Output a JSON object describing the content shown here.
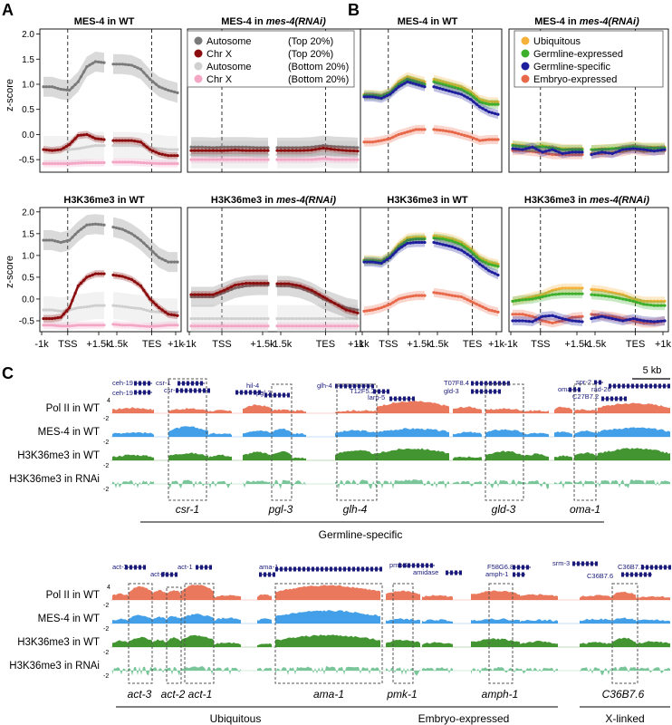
{
  "panels": {
    "A": "A",
    "B": "B",
    "C": "C"
  },
  "ylabel": "z-score",
  "yticks": [
    "-0.5",
    "0.0",
    "0.5",
    "1.0",
    "1.5",
    "2.0"
  ],
  "xticks": [
    "-1k",
    "TSS",
    "+1.5k",
    "-1.5k",
    "TES",
    "+1k"
  ],
  "legend_A": [
    {
      "label": "Autosome",
      "note": "(Top 20%)",
      "color": "#7a7a7a"
    },
    {
      "label": "Chr X",
      "note": "(Top 20%)",
      "color": "#8b0d0d"
    },
    {
      "label": "Autosome",
      "note": "(Bottom 20%)",
      "color": "#d0d0d0"
    },
    {
      "label": "Chr X",
      "note": "(Bottom 20%)",
      "color": "#f3a7c4"
    }
  ],
  "legend_B": [
    {
      "label": "Ubiquitous",
      "color": "#f6b13a"
    },
    {
      "label": "Germline-expressed",
      "color": "#3daf2c"
    },
    {
      "label": "Germline-specific",
      "color": "#1f1f9e"
    },
    {
      "label": "Embryo-expressed",
      "color": "#e8694a"
    }
  ],
  "titles": {
    "A_top_left": "MES-4 in WT",
    "A_top_right_pre": "MES-4 in ",
    "A_top_right_em": "mes-4(RNAi)",
    "A_bot_left": "H3K36me3 in WT",
    "A_bot_right_pre": "H3K36me3 in ",
    "A_bot_right_em": "mes-4(RNAi)",
    "B_top_left": "MES-4 in WT",
    "B_top_right_pre": "MES-4 in ",
    "B_top_right_em": "mes-4(RNAi)",
    "B_bot_left": "H3K36me3 in WT",
    "B_bot_right_pre": "H3K36me3 in ",
    "B_bot_right_em": "mes-4(RNAi)"
  },
  "chart_data": [
    {
      "type": "line",
      "panel": "A",
      "title": "MES-4 in WT",
      "ylim": [
        -0.75,
        2.1
      ],
      "series": [
        {
          "name": "Autosome (Top 20%)",
          "left": [
            0.95,
            0.95,
            0.9,
            0.88,
            1.05,
            1.35,
            1.45,
            1.43
          ],
          "right": [
            1.4,
            1.4,
            1.38,
            1.3,
            1.1,
            0.95,
            0.88,
            0.83
          ]
        },
        {
          "name": "Chr X (Top 20%)",
          "left": [
            -0.3,
            -0.32,
            -0.3,
            -0.2,
            -0.02,
            0.0,
            -0.08,
            -0.1
          ],
          "right": [
            -0.12,
            -0.12,
            -0.12,
            -0.15,
            -0.3,
            -0.38,
            -0.42,
            -0.42
          ]
        },
        {
          "name": "Autosome (Bottom 20%)",
          "left": [
            -0.3,
            -0.3,
            -0.3,
            -0.3,
            -0.28,
            -0.25,
            -0.22,
            -0.22
          ],
          "right": [
            -0.22,
            -0.22,
            -0.22,
            -0.23,
            -0.26,
            -0.28,
            -0.3,
            -0.3
          ]
        },
        {
          "name": "Chr X (Bottom 20%)",
          "left": [
            -0.58,
            -0.58,
            -0.58,
            -0.58,
            -0.57,
            -0.56,
            -0.56,
            -0.56
          ],
          "right": [
            -0.55,
            -0.55,
            -0.55,
            -0.56,
            -0.57,
            -0.58,
            -0.58,
            -0.58
          ]
        }
      ]
    },
    {
      "type": "line",
      "panel": "A",
      "title": "MES-4 in mes-4(RNAi)",
      "ylim": [
        -0.75,
        2.1
      ],
      "series": [
        {
          "name": "Autosome (Top 20%)",
          "left": [
            -0.25,
            -0.25,
            -0.26,
            -0.25,
            -0.25,
            -0.25,
            -0.26,
            -0.26
          ],
          "right": [
            -0.26,
            -0.26,
            -0.26,
            -0.25,
            -0.22,
            -0.24,
            -0.25,
            -0.26
          ]
        },
        {
          "name": "Chr X (Top 20%)",
          "left": [
            -0.32,
            -0.32,
            -0.32,
            -0.32,
            -0.31,
            -0.32,
            -0.32,
            -0.32
          ],
          "right": [
            -0.32,
            -0.32,
            -0.32,
            -0.31,
            -0.27,
            -0.3,
            -0.32,
            -0.33
          ]
        },
        {
          "name": "Autosome (Bottom 20%)",
          "left": [
            -0.4,
            -0.4,
            -0.4,
            -0.4,
            -0.4,
            -0.4,
            -0.4,
            -0.4
          ],
          "right": [
            -0.4,
            -0.4,
            -0.4,
            -0.4,
            -0.38,
            -0.4,
            -0.4,
            -0.4
          ]
        },
        {
          "name": "Chr X (Bottom 20%)",
          "left": [
            -0.5,
            -0.5,
            -0.5,
            -0.5,
            -0.5,
            -0.5,
            -0.5,
            -0.5
          ],
          "right": [
            -0.5,
            -0.5,
            -0.5,
            -0.5,
            -0.48,
            -0.5,
            -0.5,
            -0.5
          ]
        }
      ]
    },
    {
      "type": "line",
      "panel": "A",
      "title": "H3K36me3 in WT",
      "ylim": [
        -0.75,
        2.1
      ],
      "series": [
        {
          "name": "Autosome (Top 20%)",
          "left": [
            1.35,
            1.35,
            1.3,
            1.35,
            1.55,
            1.7,
            1.72,
            1.7
          ],
          "right": [
            1.65,
            1.6,
            1.5,
            1.35,
            1.15,
            0.95,
            0.85,
            0.85
          ]
        },
        {
          "name": "Chr X (Top 20%)",
          "left": [
            -0.45,
            -0.45,
            -0.42,
            -0.2,
            0.3,
            0.5,
            0.58,
            0.58
          ],
          "right": [
            0.55,
            0.52,
            0.45,
            0.3,
            0.0,
            -0.2,
            -0.35,
            -0.38
          ]
        },
        {
          "name": "Autosome (Bottom 20%)",
          "left": [
            -0.25,
            -0.25,
            -0.28,
            -0.25,
            -0.2,
            -0.18,
            -0.15,
            -0.15
          ],
          "right": [
            -0.15,
            -0.17,
            -0.2,
            -0.22,
            -0.28,
            -0.3,
            -0.3,
            -0.3
          ]
        },
        {
          "name": "Chr X (Bottom 20%)",
          "left": [
            -0.6,
            -0.6,
            -0.62,
            -0.62,
            -0.6,
            -0.6,
            -0.6,
            -0.6
          ],
          "right": [
            -0.58,
            -0.6,
            -0.6,
            -0.62,
            -0.63,
            -0.62,
            -0.6,
            -0.6
          ]
        }
      ]
    },
    {
      "type": "line",
      "panel": "A",
      "title": "H3K36me3 in mes-4(RNAi)",
      "ylim": [
        -0.75,
        2.1
      ],
      "series": [
        {
          "name": "Autosome (Top 20%)",
          "left": [
            0.05,
            0.05,
            0.05,
            0.15,
            0.25,
            0.3,
            0.32,
            0.32
          ],
          "right": [
            0.3,
            0.3,
            0.25,
            0.15,
            0.0,
            -0.1,
            -0.2,
            -0.25
          ]
        },
        {
          "name": "Chr X (Top 20%)",
          "left": [
            0.1,
            0.1,
            0.1,
            0.2,
            0.32,
            0.36,
            0.36,
            0.36
          ],
          "right": [
            0.35,
            0.35,
            0.3,
            0.2,
            0.05,
            -0.1,
            -0.25,
            -0.32
          ]
        },
        {
          "name": "Autosome (Bottom 20%)",
          "left": [
            -0.45,
            -0.45,
            -0.45,
            -0.45,
            -0.45,
            -0.45,
            -0.45,
            -0.45
          ],
          "right": [
            -0.45,
            -0.45,
            -0.45,
            -0.45,
            -0.45,
            -0.45,
            -0.45,
            -0.45
          ]
        },
        {
          "name": "Chr X (Bottom 20%)",
          "left": [
            -0.62,
            -0.62,
            -0.62,
            -0.62,
            -0.62,
            -0.62,
            -0.62,
            -0.62
          ],
          "right": [
            -0.62,
            -0.62,
            -0.62,
            -0.62,
            -0.62,
            -0.62,
            -0.62,
            -0.62
          ]
        }
      ]
    },
    {
      "type": "line",
      "panel": "B",
      "title": "MES-4 in WT",
      "ylim": [
        -0.75,
        2.1
      ],
      "series": [
        {
          "name": "Ubiquitous",
          "left": [
            0.8,
            0.8,
            0.78,
            0.85,
            1.05,
            1.15,
            1.1,
            1.05
          ],
          "right": [
            1.1,
            1.05,
            1.0,
            0.95,
            0.85,
            0.7,
            0.65,
            0.65
          ]
        },
        {
          "name": "Germline-expressed",
          "left": [
            0.78,
            0.78,
            0.76,
            0.83,
            1.0,
            1.1,
            1.05,
            1.0
          ],
          "right": [
            1.05,
            1.0,
            0.95,
            0.9,
            0.8,
            0.65,
            0.6,
            0.6
          ]
        },
        {
          "name": "Germline-specific",
          "left": [
            0.75,
            0.75,
            0.72,
            0.8,
            0.95,
            1.05,
            1.0,
            0.95
          ],
          "right": [
            0.95,
            0.9,
            0.85,
            0.8,
            0.7,
            0.55,
            0.45,
            0.4
          ]
        },
        {
          "name": "Embryo-expressed",
          "left": [
            -0.15,
            -0.15,
            -0.12,
            -0.08,
            0.0,
            0.05,
            0.1,
            0.1
          ],
          "right": [
            0.1,
            0.08,
            0.05,
            0.0,
            -0.05,
            -0.12,
            -0.1,
            -0.1
          ]
        }
      ]
    },
    {
      "type": "line",
      "panel": "B",
      "title": "MES-4 in mes-4(RNAi)",
      "ylim": [
        -0.75,
        2.1
      ],
      "series": [
        {
          "name": "Ubiquitous",
          "left": [
            -0.2,
            -0.22,
            -0.25,
            -0.22,
            -0.25,
            -0.28,
            -0.28,
            -0.28
          ],
          "right": [
            -0.3,
            -0.28,
            -0.28,
            -0.25,
            -0.22,
            -0.25,
            -0.25,
            -0.25
          ]
        },
        {
          "name": "Germline-expressed",
          "left": [
            -0.22,
            -0.24,
            -0.26,
            -0.24,
            -0.27,
            -0.3,
            -0.3,
            -0.3
          ],
          "right": [
            -0.3,
            -0.3,
            -0.28,
            -0.27,
            -0.24,
            -0.27,
            -0.27,
            -0.27
          ]
        },
        {
          "name": "Germline-specific",
          "left": [
            -0.28,
            -0.3,
            -0.25,
            -0.35,
            -0.3,
            -0.38,
            -0.35,
            -0.35
          ],
          "right": [
            -0.4,
            -0.35,
            -0.38,
            -0.3,
            -0.28,
            -0.3,
            -0.33,
            -0.3
          ]
        },
        {
          "name": "Embryo-expressed",
          "left": [
            -0.32,
            -0.32,
            -0.34,
            -0.36,
            -0.4,
            -0.4,
            -0.4,
            -0.4
          ],
          "right": [
            -0.38,
            -0.38,
            -0.36,
            -0.34,
            -0.3,
            -0.34,
            -0.32,
            -0.32
          ]
        }
      ]
    },
    {
      "type": "line",
      "panel": "B",
      "title": "H3K36me3 in WT",
      "ylim": [
        -0.75,
        2.1
      ],
      "series": [
        {
          "name": "Ubiquitous",
          "left": [
            0.9,
            0.9,
            0.88,
            1.0,
            1.25,
            1.4,
            1.42,
            1.42
          ],
          "right": [
            1.45,
            1.42,
            1.38,
            1.3,
            1.15,
            0.95,
            0.85,
            0.8
          ]
        },
        {
          "name": "Germline-expressed",
          "left": [
            0.88,
            0.88,
            0.86,
            0.98,
            1.2,
            1.35,
            1.38,
            1.38
          ],
          "right": [
            1.4,
            1.38,
            1.33,
            1.25,
            1.1,
            0.9,
            0.8,
            0.75
          ]
        },
        {
          "name": "Germline-specific",
          "left": [
            0.85,
            0.85,
            0.82,
            0.95,
            1.15,
            1.28,
            1.3,
            1.3
          ],
          "right": [
            1.3,
            1.25,
            1.2,
            1.12,
            0.98,
            0.8,
            0.65,
            0.55
          ]
        },
        {
          "name": "Embryo-expressed",
          "left": [
            -0.28,
            -0.25,
            -0.2,
            -0.12,
            0.0,
            0.05,
            0.08,
            0.08
          ],
          "right": [
            0.15,
            0.12,
            0.08,
            0.05,
            -0.05,
            -0.15,
            -0.25,
            -0.3
          ]
        }
      ]
    },
    {
      "type": "line",
      "panel": "B",
      "title": "H3K36me3 in mes-4(RNAi)",
      "ylim": [
        -0.75,
        2.1
      ],
      "series": [
        {
          "name": "Ubiquitous",
          "left": [
            -0.05,
            0.0,
            0.05,
            0.1,
            0.2,
            0.25,
            0.25,
            0.25
          ],
          "right": [
            0.22,
            0.2,
            0.15,
            0.1,
            0.0,
            -0.05,
            -0.05,
            -0.05
          ]
        },
        {
          "name": "Germline-expressed",
          "left": [
            -0.05,
            -0.02,
            0.0,
            0.05,
            0.1,
            0.12,
            0.12,
            0.12
          ],
          "right": [
            0.1,
            0.08,
            0.05,
            0.0,
            -0.05,
            -0.12,
            -0.15,
            -0.15
          ]
        },
        {
          "name": "Germline-specific",
          "left": [
            -0.5,
            -0.5,
            -0.52,
            -0.4,
            -0.38,
            -0.45,
            -0.5,
            -0.52
          ],
          "right": [
            -0.45,
            -0.4,
            -0.45,
            -0.5,
            -0.45,
            -0.5,
            -0.52,
            -0.5
          ]
        },
        {
          "name": "Embryo-expressed",
          "left": [
            -0.35,
            -0.35,
            -0.4,
            -0.5,
            -0.55,
            -0.5,
            -0.42,
            -0.4
          ],
          "right": [
            -0.35,
            -0.38,
            -0.4,
            -0.45,
            -0.5,
            -0.55,
            -0.55,
            -0.5
          ]
        }
      ]
    }
  ],
  "tracks": {
    "labels": [
      "Pol II in WT",
      "MES-4 in WT",
      "H3K36me3 in WT",
      "H3K36me3 in RNAi"
    ],
    "colors": [
      "#e8694a",
      "#2f96e6",
      "#2e8a1a",
      "#6cc08f"
    ],
    "ticks_top": "4",
    "ticks_bot": "-2",
    "scale": "5 kb"
  },
  "genes_row1": [
    {
      "name": "ceh-19",
      "name2": "csr-1"
    },
    {
      "name": "hil-4",
      "name2": "pgl-3"
    },
    {
      "name": "glh-4",
      "name2": "T12F5.2"
    },
    {
      "name": "T07F8.4",
      "name2": "gld-3"
    },
    {
      "name": "spr-2",
      "name2": "oma-1"
    }
  ],
  "gene_labels_extra": {
    "ceh19b": "ceh-19",
    "csr1b": "csr-1",
    "larp5": "larp-5",
    "rad26": "rad-26",
    "c27b7": "C27B7.2",
    "act2": "act-2",
    "act1": "act-1",
    "amidase": "amidase",
    "amph1": "amph-1",
    "srm3": "srm-3",
    "c36b73": "C36B7.3",
    "c36b76": "C36B7.6"
  },
  "genes_row2": [
    {
      "name": "act-3"
    },
    {
      "name": "ama-1"
    },
    {
      "name": "pmk-1"
    },
    {
      "name": "F58G6.8"
    },
    {
      "name": "C36B7.3"
    }
  ],
  "highlight_labels_row1": [
    "csr-1",
    "pgl-3",
    "glh-4",
    "gld-3",
    "oma-1"
  ],
  "highlight_labels_row2": [
    "act-3",
    "act-2",
    "act-1",
    "ama-1",
    "pmk-1",
    "amph-1",
    "C36B7.6"
  ],
  "groups": {
    "row1": "Germline-specific",
    "ubiquitous": "Ubiquitous",
    "embryo": "Embryo-expressed",
    "xlinked": "X-linked"
  }
}
